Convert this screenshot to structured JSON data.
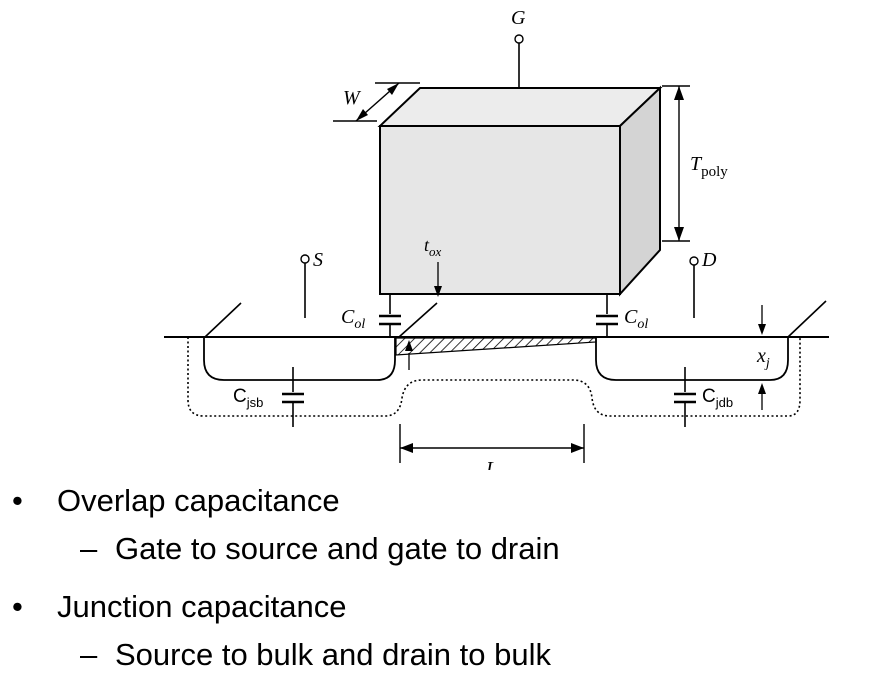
{
  "diagram": {
    "labels": {
      "gate": "G",
      "width": "W",
      "source": "S",
      "drain": "D",
      "tox": "t",
      "tox_sub": "ox",
      "tpoly": "T",
      "tpoly_sub": "poly",
      "col_left": "C",
      "col_left_sub": "ol",
      "col_right": "C",
      "col_right_sub": "ol",
      "xj": "x",
      "xj_sub": "j",
      "cjsb": "C",
      "cjsb_sub": "jsb",
      "cjdb": "C",
      "cjdb_sub": "jdb",
      "length": "L"
    }
  },
  "bullets": [
    {
      "marker": "•",
      "text": "Overlap capacitance",
      "sub": {
        "marker": "–",
        "text": "Gate to source and gate to drain"
      }
    },
    {
      "marker": "•",
      "text": "Junction capacitance",
      "sub": {
        "marker": "–",
        "text": "Source to bulk and drain to bulk"
      }
    }
  ],
  "colors": {
    "gate_fill": "#e6e6e6",
    "stroke": "#000000",
    "background": "#ffffff"
  }
}
